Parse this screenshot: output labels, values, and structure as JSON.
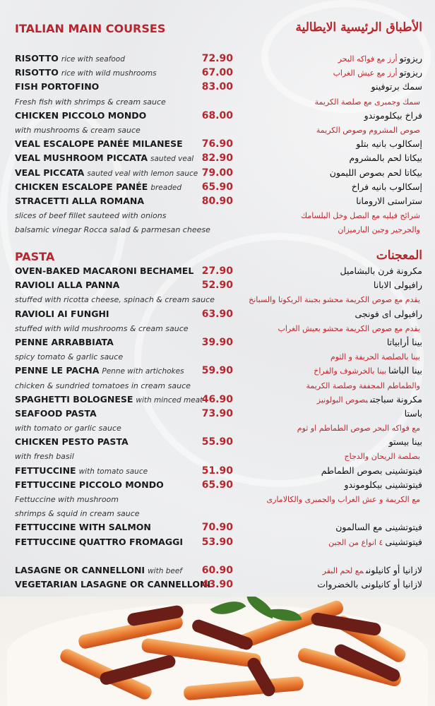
{
  "main": {
    "title_en": "ITALIAN MAIN COURSES",
    "title_ar": "الأطباق الرئيسية الايطالية",
    "lines": [
      {
        "name": "RISOTTO",
        "desc": "rice with seafood",
        "price": "72.90",
        "ar": "ريزوتو",
        "ar_desc": "أرز مع فواكه البحر"
      },
      {
        "name": "RISOTTO",
        "desc": "rice with wild mushrooms",
        "price": "67.00",
        "ar": "ريزوتو",
        "ar_desc": "أرز مع عيش الغراب"
      },
      {
        "name": "FISH PORTOFINO",
        "desc": "",
        "price": "83.00",
        "ar": "سمك برتوفينو",
        "ar_desc": ""
      },
      {
        "name": "",
        "desc": "Fresh fish with shrimps & cream sauce",
        "price": "",
        "ar": "",
        "ar_desc": "سمك وجمبرى مع صلصة الكريمة"
      },
      {
        "name": "CHICKEN PICCOLO MONDO",
        "desc": "",
        "price": "68.00",
        "ar": "فراخ بيكلوموندو",
        "ar_desc": ""
      },
      {
        "name": "",
        "desc": "with mushrooms & cream sauce",
        "price": "",
        "ar": "",
        "ar_desc": "صوص المشروم وصوص الكريمة"
      },
      {
        "name": "VEAL ESCALOPE PANÉE MILANESE",
        "desc": "",
        "price": "76.90",
        "ar": "إسكالوب بانيه بتلو",
        "ar_desc": ""
      },
      {
        "name": "VEAL MUSHROOM PICCATA",
        "desc": "sauted veal",
        "price": "82.90",
        "ar": "بيكاتا لحم بالمشروم",
        "ar_desc": ""
      },
      {
        "name": "VEAL PICCATA",
        "desc": "sauted veal with lemon sauce",
        "price": "79.00",
        "ar": "بيكاتا لحم بصوص الليمون",
        "ar_desc": ""
      },
      {
        "name": "CHICKEN ESCALOPE PANÉE",
        "desc": "breaded",
        "price": "65.90",
        "ar": "إسكالوب بانيه فراخ",
        "ar_desc": ""
      },
      {
        "name": "STRACETTI ALLA ROMANA",
        "desc": "",
        "price": "80.90",
        "ar": "ستراستى الارومانا",
        "ar_desc": ""
      },
      {
        "name": "",
        "desc": "slices of beef fillet sauteed with onions",
        "price": "",
        "ar": "",
        "ar_desc": "شرائح فيليه مع البصل وخل البلسامك"
      },
      {
        "name": "",
        "desc": "balsamic vinegar Rocca salad & parmesan cheese",
        "price": "",
        "ar": "",
        "ar_desc": "والجرجير وجبن البارميزان"
      }
    ]
  },
  "pasta": {
    "title_en": "PASTA",
    "title_ar": "المعجنات",
    "lines": [
      {
        "name": "OVEN-BAKED MACARONI BECHAMEL",
        "desc": "",
        "price": "27.90",
        "ar": "مكرونة فرن بالبشاميل",
        "ar_desc": ""
      },
      {
        "name": "RAVIOLI ALLA PANNA",
        "desc": "",
        "price": "52.90",
        "ar": "رافيولى الابانا",
        "ar_desc": ""
      },
      {
        "name": "",
        "desc": "stuffed with ricotta cheese, spinach & cream sauce",
        "price": "",
        "ar": "",
        "ar_desc": "يقدم مع صوص الكريمة محشو بجبنة الريكوتا والسبانخ"
      },
      {
        "name": "RAVIOLI AI FUNGHI",
        "desc": "",
        "price": "63.90",
        "ar": "رافيولى اى فونجى",
        "ar_desc": ""
      },
      {
        "name": "",
        "desc": "stuffed with wild mushrooms & cream sauce",
        "price": "",
        "ar": "",
        "ar_desc": "يقدم مع صوص الكريمة محشو بعيش الغراب"
      },
      {
        "name": "PENNE ARRABBIATA",
        "desc": "",
        "price": "39.90",
        "ar": "بينا أرابياتا",
        "ar_desc": ""
      },
      {
        "name": "",
        "desc": "spicy tomato & garlic sauce",
        "price": "",
        "ar": "",
        "ar_desc": "بينا بالصلصة الحريفة و الثوم"
      },
      {
        "name": "PENNE LE PACHA",
        "desc": "Penne with artichokes",
        "price": "59.90",
        "ar": "بينا الباشا",
        "ar_desc": "بينا بالخرشوف والفراخ"
      },
      {
        "name": "",
        "desc": "chicken & sundried tomatoes in cream sauce",
        "price": "",
        "ar": "",
        "ar_desc": "والطماطم المجففة وصلصة الكريمة"
      },
      {
        "name": "SPAGHETTI BOLOGNESE",
        "desc": "with minced meat",
        "price": "46.90",
        "ar": "مكرونة سباجتى",
        "ar_desc": "بصوص البولونيز"
      },
      {
        "name": "SEAFOOD PASTA",
        "desc": "",
        "price": "73.90",
        "ar": "باستا",
        "ar_desc": ""
      },
      {
        "name": "",
        "desc": "with tomato or garlic sauce",
        "price": "",
        "ar": "",
        "ar_desc": "مع فواكه البحر صوص الطماطم او ثوم"
      },
      {
        "name": "CHICKEN PESTO PASTA",
        "desc": "",
        "price": "55.90",
        "ar": "بينا بيستو",
        "ar_desc": ""
      },
      {
        "name": "",
        "desc": "with fresh basil",
        "price": "",
        "ar": "",
        "ar_desc": "بصلصة الريحان والدجاج"
      },
      {
        "name": "FETTUCCINE",
        "desc": "with tomato sauce",
        "price": "51.90",
        "ar": "فيتوتشينى بصوص الطماطم",
        "ar_desc": ""
      },
      {
        "name": "FETTUCCINE PICCOLO MONDO",
        "desc": "",
        "price": "65.90",
        "ar": "فيتوتشينى بيكلوموندو",
        "ar_desc": ""
      },
      {
        "name": "",
        "desc": "Fettuccine with mushroom",
        "price": "",
        "ar": "",
        "ar_desc": "مع الكريمة و عش الغراب والجمبرى والكالامارى"
      },
      {
        "name": "",
        "desc": "shrimps & squid in cream sauce",
        "price": "",
        "ar": "",
        "ar_desc": ""
      },
      {
        "name": "FETTUCCINE WITH SALMON",
        "desc": "",
        "price": "70.90",
        "ar": "فيتوتشينى مع السالمون",
        "ar_desc": ""
      },
      {
        "name": "FETTUCCINE QUATTRO FROMAGGI",
        "desc": "",
        "price": "53.90",
        "ar": "فيتوتشينى",
        "ar_desc": "٤ انواع من الجبن"
      }
    ],
    "lines2": [
      {
        "name": "LASAGNE OR CANNELLONI",
        "desc": "with beef",
        "price": "60.90",
        "ar": "لازانيا أو كانيلونى",
        "ar_desc": "مع لحم البقر"
      },
      {
        "name": "VEGETARIAN LASAGNE OR CANNELLONI",
        "desc": "",
        "price": "43.90",
        "ar": "لازانيا أو كانيلونى بالخضروات",
        "ar_desc": ""
      }
    ]
  },
  "colors": {
    "accent": "#b7252d",
    "text": "#1a1a1a",
    "background": "#ecedef"
  }
}
